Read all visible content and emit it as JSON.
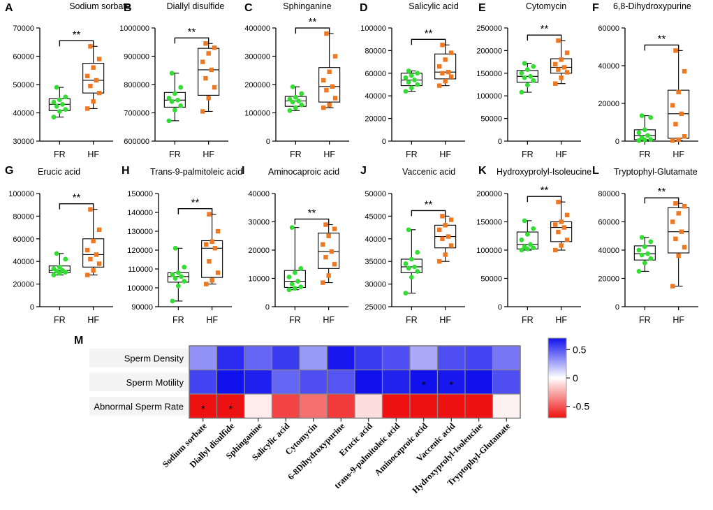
{
  "colors": {
    "fr": "#33dd33",
    "hf": "#ee7722",
    "axis": "#000000",
    "hm_pos": "#1111ee",
    "hm_neg": "#ee1111",
    "hm_mid": "#ffffff"
  },
  "chart_data": [
    {
      "type": "box",
      "panel": "A",
      "title": "Sodium sorbate",
      "categories": [
        "FR",
        "HF"
      ],
      "significance": "**",
      "y_ticks": [
        30000,
        40000,
        50000,
        60000,
        70000
      ],
      "ylim": [
        30000,
        70000
      ],
      "series": [
        {
          "name": "FR",
          "min": 38500,
          "q1": 40800,
          "median": 43000,
          "q3": 45000,
          "max": 49000,
          "points": [
            38500,
            40500,
            41200,
            42300,
            43000,
            43800,
            44600,
            45600,
            49000
          ]
        },
        {
          "name": "HF",
          "min": 41500,
          "q1": 47000,
          "median": 51500,
          "q3": 57500,
          "max": 63500,
          "points": [
            41500,
            44000,
            47000,
            49500,
            51500,
            53000,
            56000,
            59000,
            63500
          ]
        }
      ]
    },
    {
      "type": "box",
      "panel": "B",
      "title": "Diallyl disulfide",
      "categories": [
        "FR",
        "HF"
      ],
      "significance": "**",
      "y_ticks": [
        600000,
        700000,
        800000,
        900000,
        1000000
      ],
      "ylim": [
        600000,
        1000000
      ],
      "series": [
        {
          "name": "FR",
          "min": 672000,
          "q1": 720000,
          "median": 745000,
          "q3": 772000,
          "max": 840000,
          "points": [
            672000,
            710000,
            725000,
            740000,
            745000,
            752000,
            768000,
            790000,
            840000
          ]
        },
        {
          "name": "HF",
          "min": 705000,
          "q1": 762000,
          "median": 852000,
          "q3": 928000,
          "max": 945000,
          "points": [
            705000,
            752000,
            790000,
            822000,
            852000,
            880000,
            910000,
            930000,
            945000
          ]
        }
      ]
    },
    {
      "type": "box",
      "panel": "C",
      "title": "Sphinganine",
      "categories": [
        "FR",
        "HF"
      ],
      "significance": "**",
      "y_ticks": [
        0,
        100000,
        200000,
        300000,
        400000
      ],
      "ylim": [
        0,
        400000
      ],
      "series": [
        {
          "name": "FR",
          "min": 108000,
          "q1": 123000,
          "median": 142000,
          "q3": 158000,
          "max": 192000,
          "points": [
            108000,
            118000,
            128000,
            138000,
            142000,
            148000,
            155000,
            168000,
            192000
          ]
        },
        {
          "name": "HF",
          "min": 118000,
          "q1": 138000,
          "median": 193000,
          "q3": 260000,
          "max": 380000,
          "points": [
            118000,
            128000,
            152000,
            180000,
            193000,
            215000,
            245000,
            300000,
            380000
          ]
        }
      ]
    },
    {
      "type": "box",
      "panel": "D",
      "title": "Salicylic acid",
      "categories": [
        "FR",
        "HF"
      ],
      "significance": "**",
      "y_ticks": [
        0,
        20000,
        40000,
        60000,
        80000,
        100000
      ],
      "ylim": [
        0,
        100000
      ],
      "series": [
        {
          "name": "FR",
          "min": 44000,
          "q1": 49000,
          "median": 54000,
          "q3": 60000,
          "max": 62000,
          "points": [
            44000,
            47000,
            50000,
            52000,
            54000,
            56000,
            58000,
            60000,
            62000
          ]
        },
        {
          "name": "HF",
          "min": 49000,
          "q1": 55000,
          "median": 61000,
          "q3": 77000,
          "max": 85000,
          "points": [
            49000,
            53000,
            57000,
            60000,
            61000,
            66000,
            72000,
            78000,
            85000
          ]
        }
      ]
    },
    {
      "type": "box",
      "panel": "E",
      "title": "Cytomycin",
      "categories": [
        "FR",
        "HF"
      ],
      "significance": "**",
      "y_ticks": [
        0,
        50000,
        100000,
        150000,
        200000,
        250000
      ],
      "ylim": [
        0,
        250000
      ],
      "series": [
        {
          "name": "FR",
          "min": 108000,
          "q1": 130000,
          "median": 143000,
          "q3": 156000,
          "max": 172000,
          "points": [
            108000,
            124000,
            134000,
            140000,
            143000,
            150000,
            158000,
            165000,
            172000
          ]
        },
        {
          "name": "HF",
          "min": 127000,
          "q1": 150000,
          "median": 163000,
          "q3": 182000,
          "max": 222000,
          "points": [
            127000,
            140000,
            152000,
            158000,
            163000,
            170000,
            180000,
            195000,
            222000
          ]
        }
      ]
    },
    {
      "type": "box",
      "panel": "F",
      "title": "6,8-Dihydroxypurine",
      "categories": [
        "FR",
        "HF"
      ],
      "significance": "**",
      "y_ticks": [
        0,
        20000,
        40000,
        60000
      ],
      "ylim": [
        0,
        60000
      ],
      "series": [
        {
          "name": "FR",
          "min": 300,
          "q1": 800,
          "median": 3000,
          "q3": 6000,
          "max": 13500,
          "points": [
            300,
            600,
            900,
            1800,
            3000,
            4500,
            6000,
            12500,
            13500
          ]
        },
        {
          "name": "HF",
          "min": 300,
          "q1": 1500,
          "median": 14500,
          "q3": 27000,
          "max": 48000,
          "points": [
            300,
            800,
            2500,
            9000,
            14500,
            19000,
            26000,
            37000,
            48000
          ]
        }
      ]
    },
    {
      "type": "box",
      "panel": "G",
      "title": "Erucic acid",
      "categories": [
        "FR",
        "HF"
      ],
      "significance": "**",
      "y_ticks": [
        0,
        20000,
        40000,
        60000,
        80000,
        100000
      ],
      "ylim": [
        0,
        100000
      ],
      "series": [
        {
          "name": "FR",
          "min": 28000,
          "q1": 30000,
          "median": 32000,
          "q3": 36000,
          "max": 47000,
          "points": [
            28000,
            29500,
            30500,
            31500,
            32000,
            33500,
            35000,
            42000,
            47000
          ]
        },
        {
          "name": "HF",
          "min": 28000,
          "q1": 35000,
          "median": 46000,
          "q3": 60000,
          "max": 86000,
          "points": [
            28000,
            32000,
            38000,
            42000,
            46000,
            50000,
            58000,
            68000,
            86000
          ]
        }
      ]
    },
    {
      "type": "box",
      "panel": "H",
      "title": "Trans-9-palmitoleic acid",
      "categories": [
        "FR",
        "HF"
      ],
      "significance": "**",
      "y_ticks": [
        90000,
        100000,
        110000,
        120000,
        130000,
        140000,
        150000
      ],
      "ylim": [
        90000,
        150000
      ],
      "series": [
        {
          "name": "FR",
          "min": 93000,
          "q1": 103000,
          "median": 106000,
          "q3": 108000,
          "max": 121000,
          "points": [
            93000,
            101000,
            103500,
            105000,
            106000,
            107000,
            108000,
            111000,
            121000
          ]
        },
        {
          "name": "HF",
          "min": 102000,
          "q1": 105500,
          "median": 121000,
          "q3": 125000,
          "max": 139000,
          "points": [
            102000,
            104000,
            108000,
            114000,
            121000,
            123000,
            124500,
            130000,
            139000
          ]
        }
      ]
    },
    {
      "type": "box",
      "panel": "I",
      "title": "Aminocaproic acid",
      "categories": [
        "FR",
        "HF"
      ],
      "significance": "**",
      "y_ticks": [
        0,
        10000,
        20000,
        30000,
        40000
      ],
      "ylim": [
        0,
        40000
      ],
      "series": [
        {
          "name": "FR",
          "min": 6000,
          "q1": 6800,
          "median": 9000,
          "q3": 12800,
          "max": 28000,
          "points": [
            6000,
            6500,
            7000,
            8000,
            9000,
            10500,
            12000,
            13500,
            28000
          ]
        },
        {
          "name": "HF",
          "min": 8500,
          "q1": 13500,
          "median": 19500,
          "q3": 26000,
          "max": 29000,
          "points": [
            8500,
            11000,
            15000,
            17500,
            19500,
            22000,
            25000,
            27500,
            29000
          ]
        }
      ]
    },
    {
      "type": "box",
      "panel": "J",
      "title": "Vaccenic acid",
      "categories": [
        "FR",
        "HF"
      ],
      "significance": "**",
      "y_ticks": [
        25000,
        30000,
        35000,
        40000,
        45000,
        50000
      ],
      "ylim": [
        25000,
        50000
      ],
      "series": [
        {
          "name": "FR",
          "min": 28000,
          "q1": 32500,
          "median": 33800,
          "q3": 35500,
          "max": 42000,
          "points": [
            28000,
            31500,
            32800,
            33500,
            33800,
            34500,
            35500,
            37000,
            42000
          ]
        },
        {
          "name": "HF",
          "min": 35000,
          "q1": 38000,
          "median": 40500,
          "q3": 43000,
          "max": 45000,
          "points": [
            35000,
            36500,
            38500,
            40000,
            40500,
            42000,
            43000,
            44200,
            45000
          ]
        }
      ]
    },
    {
      "type": "box",
      "panel": "K",
      "title": "Hydroxyprolyl-Isoleucine",
      "categories": [
        "FR",
        "HF"
      ],
      "significance": "**",
      "y_ticks": [
        0,
        50000,
        100000,
        150000,
        200000
      ],
      "ylim": [
        0,
        200000
      ],
      "series": [
        {
          "name": "FR",
          "min": 100000,
          "q1": 102000,
          "median": 110000,
          "q3": 132000,
          "max": 152000,
          "points": [
            100000,
            102000,
            104000,
            106000,
            110000,
            118000,
            128000,
            138000,
            152000
          ]
        },
        {
          "name": "HF",
          "min": 100000,
          "q1": 115000,
          "median": 140000,
          "q3": 150000,
          "max": 185000,
          "points": [
            100000,
            108000,
            118000,
            132000,
            140000,
            145000,
            150000,
            162000,
            185000
          ]
        }
      ]
    },
    {
      "type": "box",
      "panel": "L",
      "title": "Tryptophyl-Glutamate",
      "categories": [
        "FR",
        "HF"
      ],
      "significance": "**",
      "y_ticks": [
        0,
        20000,
        40000,
        60000,
        80000
      ],
      "ylim": [
        0,
        80000
      ],
      "series": [
        {
          "name": "FR",
          "min": 25000,
          "q1": 33000,
          "median": 37500,
          "q3": 43000,
          "max": 49000,
          "points": [
            25000,
            31000,
            34000,
            36500,
            37500,
            40000,
            42500,
            46000,
            49000
          ]
        },
        {
          "name": "HF",
          "min": 14500,
          "q1": 38000,
          "median": 53000,
          "q3": 70000,
          "max": 73000,
          "points": [
            14500,
            36000,
            42000,
            48000,
            53000,
            60000,
            66000,
            71000,
            73000
          ]
        }
      ]
    },
    {
      "type": "heatmap",
      "panel": "M",
      "rows": [
        "Sperm Density",
        "Sperm Motility",
        "Abnormal Sperm Rate"
      ],
      "columns": [
        "Sodium sorbate",
        "Diallyl disulfide",
        "Sphinganine",
        "Salicylic acid",
        "Cytomycin",
        "6-8Dihydroxypurine",
        "Erucic acid",
        "trans-9-palmitoleic acid",
        "Aminocaproic acid",
        "Vaccenic acid",
        "Hydroxyprolyl-Isoleucine",
        "Tryptophyl-Glutamate"
      ],
      "values": [
        [
          0.32,
          0.62,
          0.45,
          0.58,
          0.3,
          0.68,
          0.58,
          0.52,
          0.25,
          0.52,
          0.55,
          0.4
        ],
        [
          0.55,
          0.7,
          0.66,
          0.45,
          0.52,
          0.5,
          0.72,
          0.65,
          0.74,
          0.68,
          0.7,
          0.52
        ],
        [
          -0.85,
          -0.85,
          -0.06,
          -0.55,
          -0.42,
          -0.58,
          -0.1,
          -0.75,
          -0.72,
          -0.75,
          -0.72,
          -0.04
        ]
      ],
      "significant": [
        [
          false,
          false,
          false,
          false,
          false,
          false,
          false,
          false,
          false,
          false,
          false,
          false
        ],
        [
          false,
          false,
          false,
          false,
          false,
          false,
          false,
          false,
          true,
          true,
          false,
          false
        ],
        [
          true,
          true,
          false,
          false,
          false,
          false,
          false,
          false,
          false,
          false,
          false,
          false
        ]
      ],
      "sig_marker": "*",
      "colorbar_ticks": [
        {
          "value": 0.5,
          "label": "0.5"
        },
        {
          "value": 0,
          "label": "0"
        },
        {
          "value": -0.5,
          "label": "-0.5"
        }
      ],
      "vmin": -0.7,
      "vmax": 0.7
    }
  ]
}
